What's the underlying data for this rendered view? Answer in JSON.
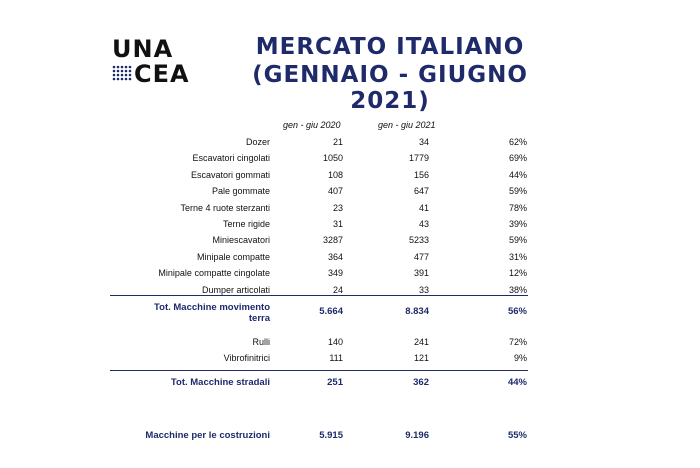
{
  "logo": {
    "line1": "UNA",
    "line2": "CEA"
  },
  "title": {
    "line1": "MERCATO ITALIANO",
    "line2": "(GENNAIO - GIUGNO 2021)"
  },
  "headers": {
    "col2020": "gen - giu 2020",
    "col2021": "gen - giu 2021"
  },
  "rows": [
    {
      "label": "Dozer",
      "v2020": "21",
      "v2021": "34",
      "pct": "62%"
    },
    {
      "label": "Escavatori cingolati",
      "v2020": "1050",
      "v2021": "1779",
      "pct": "69%"
    },
    {
      "label": "Escavatori gommati",
      "v2020": "108",
      "v2021": "156",
      "pct": "44%"
    },
    {
      "label": "Pale gommate",
      "v2020": "407",
      "v2021": "647",
      "pct": "59%"
    },
    {
      "label": "Terne 4 ruote sterzanti",
      "v2020": "23",
      "v2021": "41",
      "pct": "78%"
    },
    {
      "label": "Terne rigide",
      "v2020": "31",
      "v2021": "43",
      "pct": "39%"
    },
    {
      "label": "Miniescavatori",
      "v2020": "3287",
      "v2021": "5233",
      "pct": "59%"
    },
    {
      "label": "Minipale compatte",
      "v2020": "364",
      "v2021": "477",
      "pct": "31%"
    },
    {
      "label": "Minipale compatte cingolate",
      "v2020": "349",
      "v2021": "391",
      "pct": "12%"
    },
    {
      "label": "Dumper articolati",
      "v2020": "24",
      "v2021": "33",
      "pct": "38%"
    }
  ],
  "total_movimento": {
    "label_line1": "Tot. Macchine movimento",
    "label_line2": "terra",
    "v2020": "5.664",
    "v2021": "8.834",
    "pct": "56%"
  },
  "rows_stradali": [
    {
      "label": "Rulli",
      "v2020": "140",
      "v2021": "241",
      "pct": "72%"
    },
    {
      "label": "Vibrofinitrici",
      "v2020": "111",
      "v2021": "121",
      "pct": "9%"
    }
  ],
  "total_stradali": {
    "label": "Tot. Macchine stradali",
    "v2020": "251",
    "v2021": "362",
    "pct": "44%"
  },
  "total_costruzioni": {
    "label": "Macchine per le costruzioni",
    "v2020": "5.915",
    "v2021": "9.196",
    "pct": "55%"
  },
  "colors": {
    "accent": "#1f2a6b"
  }
}
